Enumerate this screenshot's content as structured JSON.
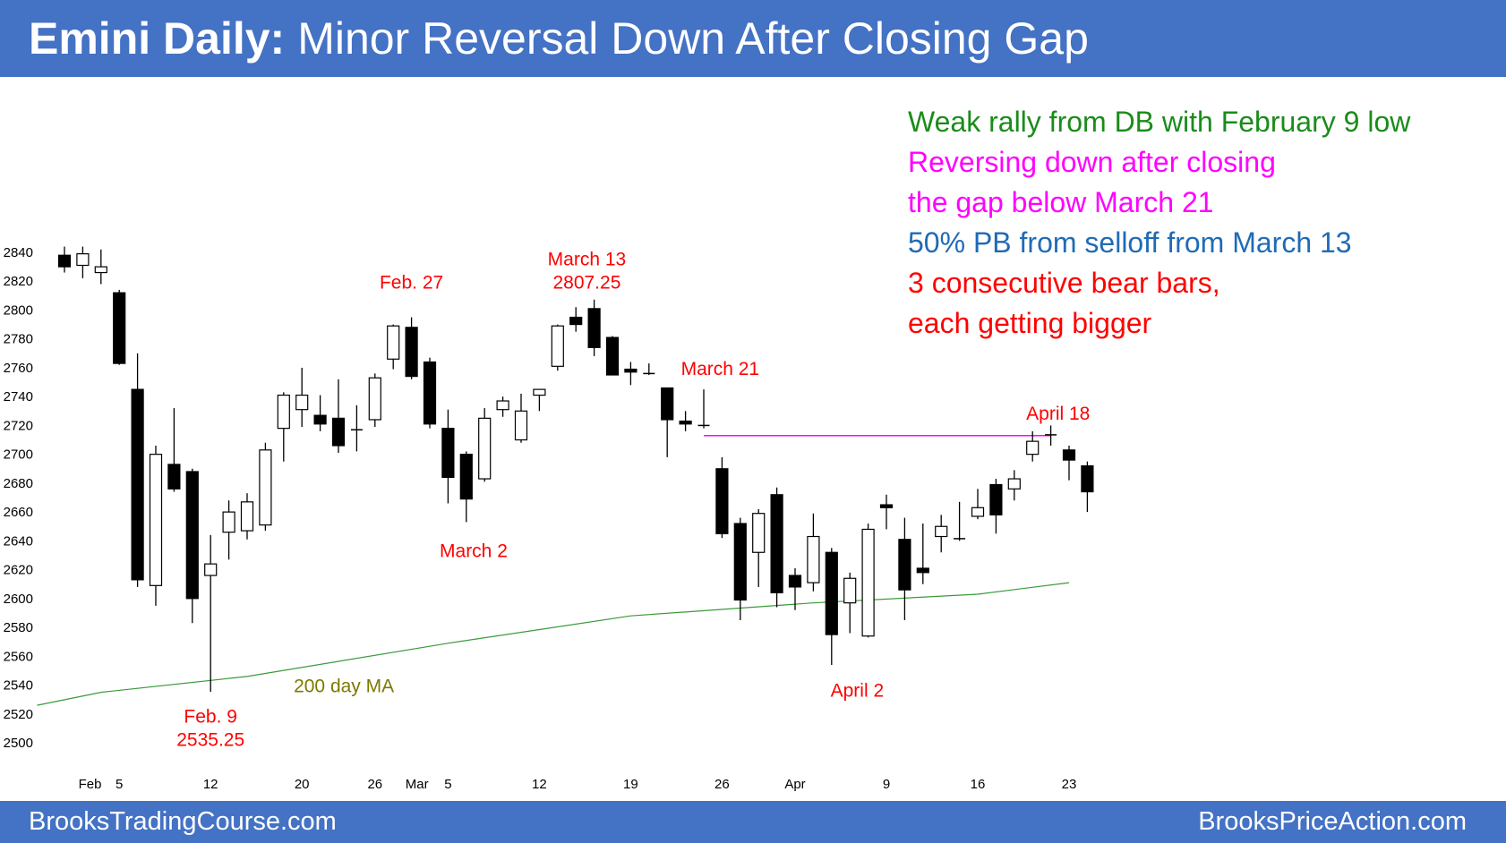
{
  "header": {
    "title_bold": "Emini Daily:",
    "title_rest": "Minor Reversal Down After Closing Gap"
  },
  "footer": {
    "left": "BrooksTradingCourse.com",
    "right": "BrooksPriceAction.com"
  },
  "notes": [
    {
      "text": "Weak rally from DB with February 9 low",
      "color": "#1a8c1a"
    },
    {
      "text": "Reversing down after closing",
      "color": "#ff00ff"
    },
    {
      "text": "the gap below March 21",
      "color": "#ff00ff"
    },
    {
      "text": "50% PB from selloff from March 13",
      "color": "#1f6bb5"
    },
    {
      "text": "3 consecutive bear bars,",
      "color": "#ff0000"
    },
    {
      "text": "each getting bigger",
      "color": "#ff0000"
    }
  ],
  "colors": {
    "title_bg": "#4472c4",
    "ma_line": "#3a9a3a",
    "gap_line": "#ff00ff",
    "annotation": "#ff0000",
    "ma_label": "#7a7a00"
  },
  "chart_data": {
    "type": "candlestick",
    "title": "Emini Daily",
    "ylim": [
      2495,
      2850
    ],
    "yticks": [
      2500,
      2520,
      2540,
      2560,
      2580,
      2600,
      2620,
      2640,
      2660,
      2680,
      2700,
      2720,
      2740,
      2760,
      2780,
      2800,
      2820,
      2840
    ],
    "xticks": [
      {
        "label": "Feb",
        "bar": 1.4
      },
      {
        "label": "5",
        "bar": 3
      },
      {
        "label": "12",
        "bar": 8
      },
      {
        "label": "20",
        "bar": 13
      },
      {
        "label": "26",
        "bar": 17
      },
      {
        "label": "Mar",
        "bar": 19.3
      },
      {
        "label": "5",
        "bar": 21
      },
      {
        "label": "12",
        "bar": 26
      },
      {
        "label": "19",
        "bar": 31
      },
      {
        "label": "26",
        "bar": 36
      },
      {
        "label": "Apr",
        "bar": 40
      },
      {
        "label": "9",
        "bar": 45
      },
      {
        "label": "16",
        "bar": 50
      },
      {
        "label": "23",
        "bar": 55
      }
    ],
    "candles": [
      {
        "o": 2838,
        "h": 2844,
        "l": 2826,
        "c": 2830
      },
      {
        "o": 2831,
        "h": 2844,
        "l": 2822,
        "c": 2839
      },
      {
        "o": 2826,
        "h": 2842,
        "l": 2818,
        "c": 2830
      },
      {
        "o": 2812,
        "h": 2814,
        "l": 2762,
        "c": 2763
      },
      {
        "o": 2745,
        "h": 2770,
        "l": 2608,
        "c": 2613
      },
      {
        "o": 2609,
        "h": 2706,
        "l": 2595,
        "c": 2700
      },
      {
        "o": 2693,
        "h": 2732,
        "l": 2674,
        "c": 2676
      },
      {
        "o": 2688,
        "h": 2690,
        "l": 2583,
        "c": 2600
      },
      {
        "o": 2616,
        "h": 2644,
        "l": 2535.25,
        "c": 2624
      },
      {
        "o": 2646,
        "h": 2668,
        "l": 2627,
        "c": 2660
      },
      {
        "o": 2647,
        "h": 2673,
        "l": 2641,
        "c": 2667
      },
      {
        "o": 2651,
        "h": 2708,
        "l": 2647,
        "c": 2703
      },
      {
        "o": 2718,
        "h": 2743,
        "l": 2695,
        "c": 2741
      },
      {
        "o": 2731,
        "h": 2760,
        "l": 2719,
        "c": 2741
      },
      {
        "o": 2727,
        "h": 2741,
        "l": 2716,
        "c": 2721
      },
      {
        "o": 2725,
        "h": 2752,
        "l": 2701,
        "c": 2706
      },
      {
        "o": 2717,
        "h": 2734,
        "l": 2702,
        "c": 2717
      },
      {
        "o": 2724,
        "h": 2756,
        "l": 2719,
        "c": 2753
      },
      {
        "o": 2766,
        "h": 2790,
        "l": 2759,
        "c": 2789
      },
      {
        "o": 2788,
        "h": 2795,
        "l": 2752,
        "c": 2754
      },
      {
        "o": 2764,
        "h": 2767,
        "l": 2718,
        "c": 2721
      },
      {
        "o": 2718,
        "h": 2731,
        "l": 2666,
        "c": 2684
      },
      {
        "o": 2700,
        "h": 2702,
        "l": 2653,
        "c": 2669
      },
      {
        "o": 2683,
        "h": 2732,
        "l": 2681,
        "c": 2725
      },
      {
        "o": 2731,
        "h": 2740,
        "l": 2726,
        "c": 2737
      },
      {
        "o": 2710,
        "h": 2742,
        "l": 2708,
        "c": 2730
      },
      {
        "o": 2741,
        "h": 2745,
        "l": 2730,
        "c": 2745
      },
      {
        "o": 2761,
        "h": 2790,
        "l": 2758,
        "c": 2789
      },
      {
        "o": 2795,
        "h": 2802,
        "l": 2785,
        "c": 2790
      },
      {
        "o": 2801,
        "h": 2807.25,
        "l": 2768,
        "c": 2774
      },
      {
        "o": 2781,
        "h": 2782,
        "l": 2755,
        "c": 2755
      },
      {
        "o": 2759,
        "h": 2764,
        "l": 2748,
        "c": 2757
      },
      {
        "o": 2756,
        "h": 2763,
        "l": 2755,
        "c": 2756
      },
      {
        "o": 2746,
        "h": 2746,
        "l": 2698,
        "c": 2724
      },
      {
        "o": 2723,
        "h": 2730,
        "l": 2716,
        "c": 2721
      },
      {
        "o": 2720,
        "h": 2745,
        "l": 2718,
        "c": 2720
      },
      {
        "o": 2690,
        "h": 2698,
        "l": 2642,
        "c": 2645
      },
      {
        "o": 2652,
        "h": 2656,
        "l": 2585,
        "c": 2599
      },
      {
        "o": 2632,
        "h": 2662,
        "l": 2608,
        "c": 2659
      },
      {
        "o": 2672,
        "h": 2677,
        "l": 2594,
        "c": 2604
      },
      {
        "o": 2616,
        "h": 2621,
        "l": 2592,
        "c": 2608
      },
      {
        "o": 2611,
        "h": 2659,
        "l": 2605,
        "c": 2643
      },
      {
        "o": 2632,
        "h": 2635,
        "l": 2554,
        "c": 2575
      },
      {
        "o": 2597,
        "h": 2618,
        "l": 2576,
        "c": 2614
      },
      {
        "o": 2574,
        "h": 2652,
        "l": 2573,
        "c": 2648
      },
      {
        "o": 2665,
        "h": 2672,
        "l": 2648,
        "c": 2663
      },
      {
        "o": 2641,
        "h": 2656,
        "l": 2585,
        "c": 2606
      },
      {
        "o": 2621,
        "h": 2652,
        "l": 2610,
        "c": 2618
      },
      {
        "o": 2643,
        "h": 2658,
        "l": 2632,
        "c": 2650
      },
      {
        "o": 2642,
        "h": 2667,
        "l": 2640,
        "c": 2641
      },
      {
        "o": 2657,
        "h": 2676,
        "l": 2655,
        "c": 2663
      },
      {
        "o": 2679,
        "h": 2683,
        "l": 2645,
        "c": 2658
      },
      {
        "o": 2676,
        "h": 2689,
        "l": 2668,
        "c": 2683
      },
      {
        "o": 2700,
        "h": 2716,
        "l": 2695,
        "c": 2709
      },
      {
        "o": 2714,
        "h": 2720,
        "l": 2706,
        "c": 2713
      },
      {
        "o": 2703,
        "h": 2706,
        "l": 2682,
        "c": 2696
      },
      {
        "o": 2692,
        "h": 2695,
        "l": 2660,
        "c": 2674
      }
    ],
    "moving_average": {
      "name": "200 day MA",
      "points": [
        [
          -1.5,
          2526
        ],
        [
          2,
          2535
        ],
        [
          10,
          2546
        ],
        [
          21,
          2569
        ],
        [
          31,
          2588
        ],
        [
          41,
          2597
        ],
        [
          50,
          2603
        ],
        [
          55,
          2611
        ]
      ]
    },
    "gap_line": {
      "value": 2713,
      "from_bar": 35,
      "to_bar": 54
    },
    "annotations": [
      {
        "lines": [
          "Feb. 9",
          "2535.25"
        ],
        "bar": 8,
        "value": 2525,
        "anchor": "below"
      },
      {
        "lines": [
          "Feb. 27"
        ],
        "bar": 19,
        "value": 2815,
        "anchor": "above"
      },
      {
        "lines": [
          "March 2"
        ],
        "bar": 22.4,
        "value": 2640,
        "anchor": "below"
      },
      {
        "lines": [
          "March 13",
          "2807.25"
        ],
        "bar": 28.6,
        "value": 2815,
        "anchor": "above"
      },
      {
        "lines": [
          "March 21"
        ],
        "bar": 35.9,
        "value": 2755,
        "anchor": "above"
      },
      {
        "lines": [
          "April 2"
        ],
        "bar": 43.4,
        "value": 2543,
        "anchor": "below"
      },
      {
        "lines": [
          "April 18"
        ],
        "bar": 54.4,
        "value": 2724,
        "anchor": "above"
      }
    ],
    "ma_label": {
      "text": "200 day MA",
      "bar": 15.3,
      "value": 2535
    }
  }
}
